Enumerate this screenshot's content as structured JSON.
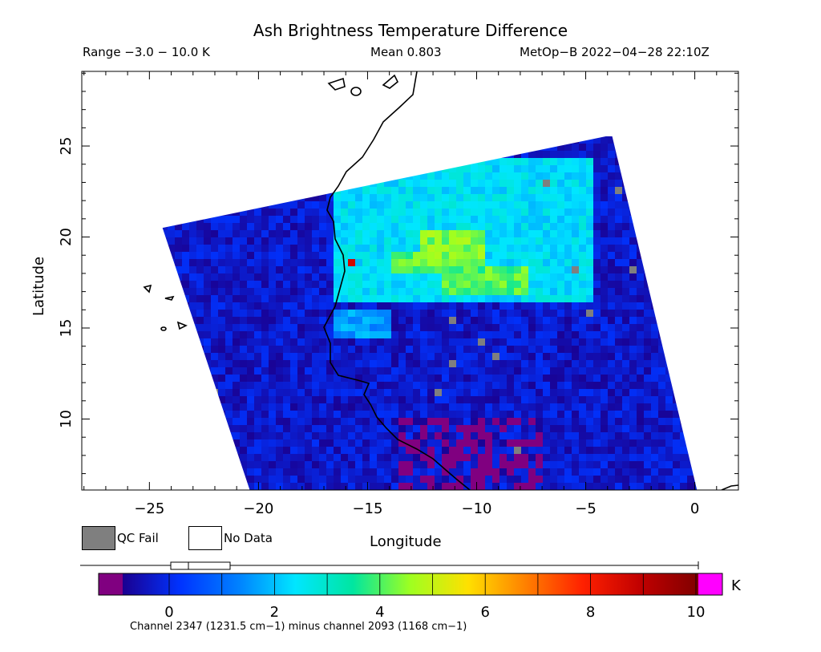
{
  "header": {
    "title": "Ash Brightness Temperature Difference",
    "range": "Range −3.0 − 10.0 K",
    "mean": "Mean 0.803",
    "satellite": "MetOp−B 2022−04−28 22:10Z"
  },
  "legend": {
    "qc_fail": "QC Fail",
    "no_data": "No Data"
  },
  "colorbar": {
    "unit": "K",
    "ticks": [
      "0",
      "2",
      "4",
      "6",
      "8",
      "10"
    ],
    "colors": [
      "#1a0090",
      "#0033ff",
      "#0080ff",
      "#00e6ff",
      "#00e6a0",
      "#9fff20",
      "#ffe000",
      "#ff8000",
      "#ff2000",
      "#c00000",
      "#800000"
    ],
    "under_color": "#800080",
    "over_color": "#ff00ff",
    "caption": "Channel 2347 (1231.5 cm−1) minus channel 2093 (1168 cm−1)"
  },
  "chart_data": {
    "type": "heatmap",
    "title": "Ash Brightness Temperature Difference",
    "xlabel": "Longitude",
    "ylabel": "Latitude",
    "xlim": [
      -28.1,
      2.0
    ],
    "ylim": [
      6.1,
      29.1
    ],
    "x_ticks": [
      "−25",
      "−20",
      "−15",
      "−10",
      "−5",
      "0"
    ],
    "x_tick_values": [
      -25,
      -20,
      -15,
      -10,
      -5,
      0
    ],
    "y_ticks": [
      "10",
      "15",
      "20",
      "25"
    ],
    "y_tick_values": [
      10,
      15,
      20,
      25
    ],
    "value_range": [
      -3.0,
      10.0
    ],
    "mean": 0.803,
    "units": "K",
    "swath_corners_lonlat": [
      [
        -24.4,
        20.5
      ],
      [
        -3.8,
        25.6
      ],
      [
        0.1,
        6.1
      ],
      [
        -20.4,
        6.1
      ]
    ],
    "regions": [
      {
        "desc": "background",
        "value": 0.5
      },
      {
        "lon": [
          -16.5,
          -4.5
        ],
        "lat": [
          16.5,
          24.5
        ],
        "value": 3.0
      },
      {
        "lon": [
          -12.5,
          -9.5
        ],
        "lat": [
          18.5,
          20.5
        ],
        "value": 4.8
      },
      {
        "lon": [
          -14.0,
          -11.5
        ],
        "lat": [
          17.9,
          19.1
        ],
        "value": 4.5
      },
      {
        "lon": [
          -11.5,
          -7.5
        ],
        "lat": [
          16.8,
          18.3
        ],
        "value": 4.5
      },
      {
        "lon": [
          -16.0,
          -15.5
        ],
        "lat": [
          18.2,
          18.8
        ],
        "value": 8.5
      },
      {
        "lon": [
          -16.5,
          -14.0
        ],
        "lat": [
          14.5,
          16.0
        ],
        "value": 2.3
      },
      {
        "lon": [
          -13.5,
          -7.0
        ],
        "lat": [
          6.1,
          10.0
        ],
        "value": -1.5
      }
    ]
  }
}
